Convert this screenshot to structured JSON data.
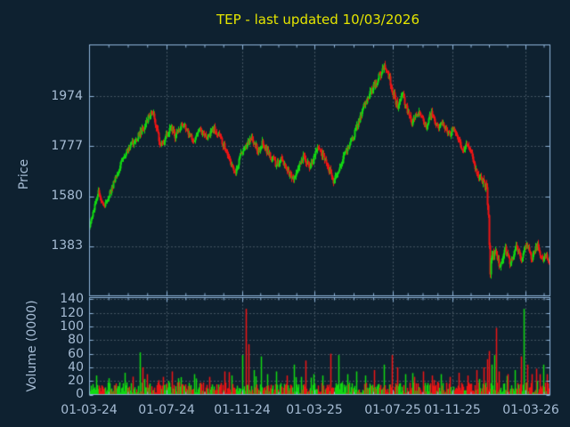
{
  "title": "TEP - last updated 10/03/2026",
  "colors": {
    "background": "#0e2130",
    "axis_border": "#8fb4d9",
    "tick_label": "#a6bcd4",
    "title_text": "#e5e500",
    "grid": "rgba(210,218,226,0.55)",
    "candle_up": "#12d812",
    "candle_down": "#ed1515"
  },
  "price_axis": {
    "label": "Price",
    "ticks": [
      {
        "label": "1974",
        "value": 1974
      },
      {
        "label": "1777",
        "value": 1777
      },
      {
        "label": "1580",
        "value": 1580
      },
      {
        "label": "1383",
        "value": 1383
      }
    ]
  },
  "volume_axis": {
    "label": "Volume (0000)",
    "ticks": [
      {
        "label": "140",
        "value": 140
      },
      {
        "label": "120",
        "value": 120
      },
      {
        "label": "100",
        "value": 100
      },
      {
        "label": "80",
        "value": 80
      },
      {
        "label": "60",
        "value": 60
      },
      {
        "label": "40",
        "value": 40
      },
      {
        "label": "20",
        "value": 20
      },
      {
        "label": "0",
        "value": 0
      }
    ]
  },
  "x_axis": {
    "ticks": [
      {
        "label": "01-03-24"
      },
      {
        "label": "01-07-24"
      },
      {
        "label": "01-11-24"
      },
      {
        "label": "01-03-25"
      },
      {
        "label": "01-07-25"
      },
      {
        "label": "01-11-25"
      },
      {
        "label": "01-03-26"
      }
    ]
  },
  "chart_data": {
    "type": "candlestick",
    "subtype": "price-with-volume-panel",
    "symbol": "TEP",
    "last_updated": "10/03/2026",
    "x_range_dates": [
      "01-03-24",
      "10-03-26"
    ],
    "days": 518,
    "price_ylim": [
      1186,
      2177
    ],
    "volume_ylim": [
      0,
      145
    ],
    "price_gridlines": [
      1383,
      1580,
      1777,
      1974
    ],
    "volume_gridlines": [
      20,
      40,
      60,
      80,
      100,
      120,
      140
    ],
    "grid_dash": [
      1,
      3
    ],
    "legend": "none",
    "trend_anchors": [
      [
        0,
        1465
      ],
      [
        3,
        1495
      ],
      [
        6,
        1545
      ],
      [
        10,
        1598
      ],
      [
        13,
        1565
      ],
      [
        16,
        1540
      ],
      [
        20,
        1568
      ],
      [
        25,
        1610
      ],
      [
        30,
        1660
      ],
      [
        36,
        1715
      ],
      [
        42,
        1760
      ],
      [
        48,
        1790
      ],
      [
        54,
        1815
      ],
      [
        60,
        1845
      ],
      [
        66,
        1885
      ],
      [
        70,
        1915
      ],
      [
        73,
        1880
      ],
      [
        77,
        1820
      ],
      [
        80,
        1770
      ],
      [
        84,
        1800
      ],
      [
        88,
        1830
      ],
      [
        92,
        1845
      ],
      [
        96,
        1815
      ],
      [
        100,
        1835
      ],
      [
        104,
        1860
      ],
      [
        108,
        1850
      ],
      [
        112,
        1825
      ],
      [
        116,
        1800
      ],
      [
        120,
        1815
      ],
      [
        124,
        1845
      ],
      [
        128,
        1825
      ],
      [
        132,
        1810
      ],
      [
        136,
        1830
      ],
      [
        140,
        1845
      ],
      [
        144,
        1825
      ],
      [
        148,
        1800
      ],
      [
        152,
        1770
      ],
      [
        156,
        1735
      ],
      [
        160,
        1700
      ],
      [
        164,
        1672
      ],
      [
        167,
        1705
      ],
      [
        170,
        1745
      ],
      [
        174,
        1768
      ],
      [
        178,
        1790
      ],
      [
        182,
        1805
      ],
      [
        186,
        1780
      ],
      [
        190,
        1758
      ],
      [
        194,
        1788
      ],
      [
        198,
        1765
      ],
      [
        202,
        1745
      ],
      [
        206,
        1722
      ],
      [
        210,
        1700
      ],
      [
        214,
        1725
      ],
      [
        218,
        1708
      ],
      [
        222,
        1682
      ],
      [
        226,
        1655
      ],
      [
        229,
        1635
      ],
      [
        232,
        1672
      ],
      [
        236,
        1705
      ],
      [
        240,
        1742
      ],
      [
        244,
        1712
      ],
      [
        248,
        1695
      ],
      [
        252,
        1735
      ],
      [
        256,
        1772
      ],
      [
        260,
        1752
      ],
      [
        264,
        1722
      ],
      [
        268,
        1692
      ],
      [
        271,
        1668
      ],
      [
        274,
        1640
      ],
      [
        277,
        1668
      ],
      [
        280,
        1685
      ],
      [
        284,
        1722
      ],
      [
        288,
        1752
      ],
      [
        292,
        1782
      ],
      [
        296,
        1812
      ],
      [
        300,
        1852
      ],
      [
        304,
        1892
      ],
      [
        308,
        1932
      ],
      [
        312,
        1965
      ],
      [
        316,
        1992
      ],
      [
        320,
        2015
      ],
      [
        324,
        2042
      ],
      [
        328,
        2072
      ],
      [
        331,
        2098
      ],
      [
        334,
        2075
      ],
      [
        337,
        2040
      ],
      [
        340,
        2000
      ],
      [
        343,
        1965
      ],
      [
        346,
        1930
      ],
      [
        349,
        1955
      ],
      [
        352,
        1975
      ],
      [
        355,
        1940
      ],
      [
        358,
        1905
      ],
      [
        362,
        1872
      ],
      [
        366,
        1895
      ],
      [
        370,
        1915
      ],
      [
        374,
        1885
      ],
      [
        378,
        1858
      ],
      [
        381,
        1885
      ],
      [
        384,
        1905
      ],
      [
        388,
        1875
      ],
      [
        392,
        1852
      ],
      [
        396,
        1872
      ],
      [
        400,
        1845
      ],
      [
        404,
        1822
      ],
      [
        408,
        1845
      ],
      [
        412,
        1815
      ],
      [
        416,
        1788
      ],
      [
        420,
        1762
      ],
      [
        424,
        1785
      ],
      [
        428,
        1755
      ],
      [
        432,
        1700
      ],
      [
        436,
        1668
      ],
      [
        440,
        1645
      ],
      [
        443,
        1628
      ],
      [
        446,
        1618
      ],
      [
        448,
        1500
      ],
      [
        450,
        1290
      ],
      [
        452,
        1335
      ],
      [
        455,
        1368
      ],
      [
        458,
        1332
      ],
      [
        461,
        1302
      ],
      [
        464,
        1338
      ],
      [
        467,
        1368
      ],
      [
        470,
        1342
      ],
      [
        473,
        1312
      ],
      [
        476,
        1348
      ],
      [
        479,
        1378
      ],
      [
        482,
        1358
      ],
      [
        485,
        1330
      ],
      [
        488,
        1362
      ],
      [
        491,
        1388
      ],
      [
        494,
        1362
      ],
      [
        497,
        1332
      ],
      [
        500,
        1362
      ],
      [
        503,
        1388
      ],
      [
        506,
        1352
      ],
      [
        509,
        1322
      ],
      [
        512,
        1342
      ],
      [
        517,
        1330
      ]
    ],
    "volatility_anchors": [
      [
        0,
        8
      ],
      [
        40,
        10
      ],
      [
        70,
        14
      ],
      [
        120,
        10
      ],
      [
        160,
        12
      ],
      [
        230,
        13
      ],
      [
        270,
        13
      ],
      [
        300,
        11
      ],
      [
        331,
        15
      ],
      [
        360,
        13
      ],
      [
        400,
        11
      ],
      [
        440,
        12
      ],
      [
        448,
        22
      ],
      [
        452,
        16
      ],
      [
        480,
        13
      ],
      [
        517,
        12
      ]
    ],
    "volume_base_range": [
      2,
      18
    ],
    "volume_spikes": [
      [
        8,
        28
      ],
      [
        22,
        24
      ],
      [
        40,
        32
      ],
      [
        57,
        62
      ],
      [
        60,
        40
      ],
      [
        65,
        30
      ],
      [
        83,
        26
      ],
      [
        100,
        24
      ],
      [
        118,
        30
      ],
      [
        135,
        26
      ],
      [
        152,
        34
      ],
      [
        160,
        28
      ],
      [
        172,
        58
      ],
      [
        176,
        126
      ],
      [
        179,
        74
      ],
      [
        185,
        36
      ],
      [
        193,
        56
      ],
      [
        200,
        30
      ],
      [
        210,
        34
      ],
      [
        222,
        28
      ],
      [
        230,
        44
      ],
      [
        238,
        26
      ],
      [
        243,
        50
      ],
      [
        252,
        30
      ],
      [
        262,
        28
      ],
      [
        271,
        60
      ],
      [
        280,
        58
      ],
      [
        290,
        30
      ],
      [
        300,
        34
      ],
      [
        310,
        28
      ],
      [
        320,
        36
      ],
      [
        331,
        44
      ],
      [
        340,
        58
      ],
      [
        346,
        40
      ],
      [
        355,
        30
      ],
      [
        365,
        26
      ],
      [
        375,
        34
      ],
      [
        385,
        28
      ],
      [
        395,
        30
      ],
      [
        405,
        26
      ],
      [
        415,
        32
      ],
      [
        425,
        28
      ],
      [
        435,
        36
      ],
      [
        443,
        40
      ],
      [
        447,
        52
      ],
      [
        449,
        64
      ],
      [
        452,
        44
      ],
      [
        455,
        58
      ],
      [
        457,
        98
      ],
      [
        460,
        34
      ],
      [
        470,
        30
      ],
      [
        478,
        36
      ],
      [
        485,
        56
      ],
      [
        488,
        126
      ],
      [
        492,
        44
      ],
      [
        497,
        30
      ],
      [
        502,
        38
      ],
      [
        506,
        30
      ],
      [
        510,
        44
      ],
      [
        514,
        30
      ]
    ]
  }
}
